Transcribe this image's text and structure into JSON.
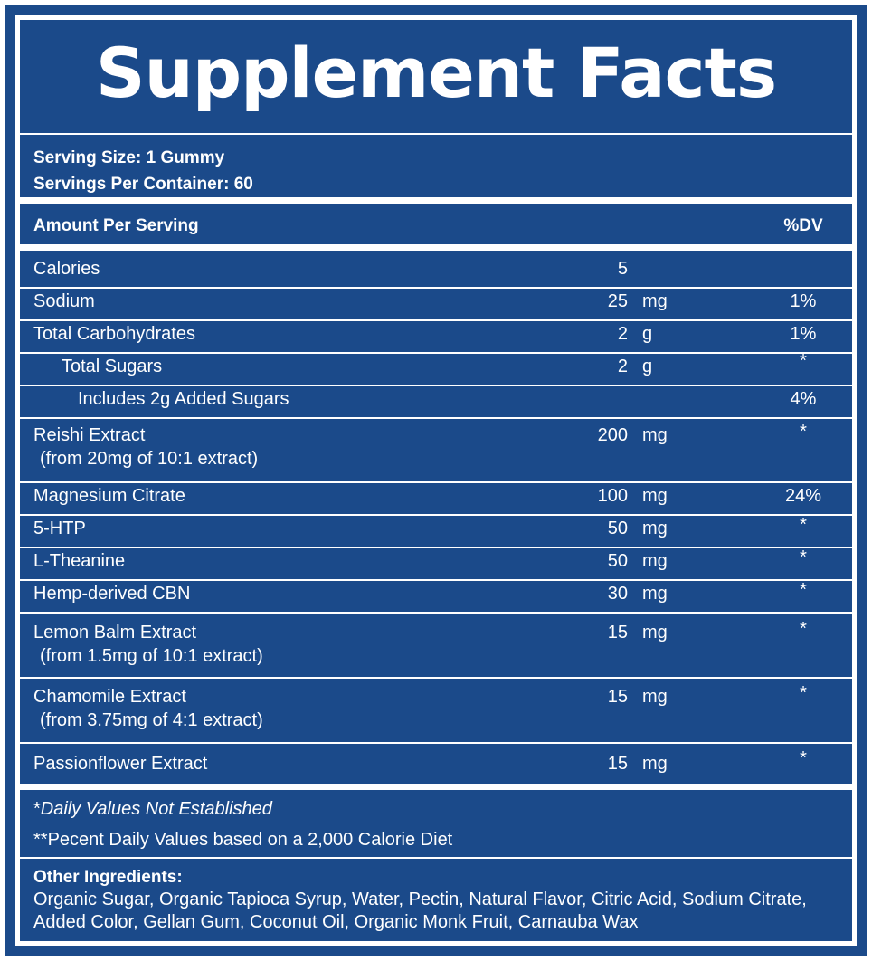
{
  "title": "Supplement Facts",
  "serving_size": "Serving Size: 1 Gummy",
  "servings_per_container": "Servings Per Container: 60",
  "amount_per_serving": "Amount Per Serving",
  "dv_header": "%DV",
  "nutrients": [
    {
      "name": "Calories",
      "amount": "5",
      "unit": "",
      "dv": ""
    },
    {
      "name": "Sodium",
      "amount": "25",
      "unit": "mg",
      "dv": "1%"
    },
    {
      "name": "Total Carbohydrates",
      "amount": "2",
      "unit": "g",
      "dv": "1%"
    },
    {
      "name": "Total Sugars",
      "amount": "2",
      "unit": "g",
      "dv": "*"
    },
    {
      "name": "Includes 2g Added Sugars",
      "amount": "",
      "unit": "",
      "dv": "4%"
    },
    {
      "name": "Reishi Extract",
      "sub": "(from 20mg of 10:1 extract)",
      "amount": "200",
      "unit": "mg",
      "dv": "*"
    },
    {
      "name": "Magnesium Citrate",
      "amount": "100",
      "unit": "mg",
      "dv": "24%"
    },
    {
      "name": "5-HTP",
      "amount": "50",
      "unit": "mg",
      "dv": "*"
    },
    {
      "name": "L-Theanine",
      "amount": "50",
      "unit": "mg",
      "dv": "*"
    },
    {
      "name": "Hemp-derived CBN",
      "amount": "30",
      "unit": "mg",
      "dv": "*"
    },
    {
      "name": "Lemon Balm Extract",
      "sub": "(from 1.5mg of 10:1 extract)",
      "amount": "15",
      "unit": "mg",
      "dv": "*"
    },
    {
      "name": "Chamomile Extract",
      "sub": "(from 3.75mg of 4:1 extract)",
      "amount": "15",
      "unit": "mg",
      "dv": "*"
    },
    {
      "name": "Passionflower Extract",
      "amount": "15",
      "unit": "mg",
      "dv": "*"
    }
  ],
  "footnote_star": "*",
  "footnote_1": "Daily Values Not Established",
  "footnote_2": "**Pecent Daily Values based on a 2,000 Calorie Diet",
  "other_label": "Other Ingredients:",
  "other_text": "Organic Sugar, Organic Tapioca Syrup, Water, Pectin, Natural Flavor, Citric Acid, Sodium Citrate, Added Color, Gellan Gum, Coconut Oil, Organic Monk Fruit, Carnauba Wax",
  "colors": {
    "panel": "#1b4a8a",
    "text": "#ffffff"
  }
}
